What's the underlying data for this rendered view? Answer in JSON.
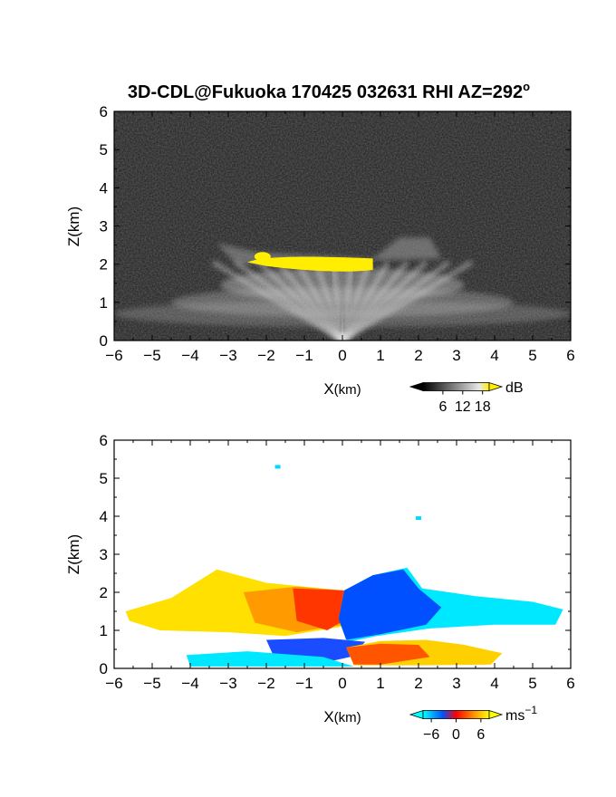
{
  "title": "3D-CDL@Fukuoka 170425 032631 RHI AZ=292",
  "title_degree": "o",
  "chart_data": [
    {
      "type": "heatmap",
      "panel": "top",
      "quantity": "signal intensity",
      "xlabel_main": "X",
      "xlabel_unit": "(km)",
      "ylabel": "Z(km)",
      "xlim": [
        -6,
        6
      ],
      "ylim": [
        0,
        6
      ],
      "xticks": [
        -6,
        -5,
        -4,
        -3,
        -2,
        -1,
        0,
        1,
        2,
        3,
        4,
        5,
        6
      ],
      "yticks": [
        0,
        1,
        2,
        3,
        4,
        5,
        6
      ],
      "colorbar": {
        "label": "dB",
        "ticks": [
          6,
          12,
          18
        ],
        "range": [
          0,
          20
        ],
        "colors": [
          "#000000",
          "#ffffff",
          "#ffee00"
        ]
      },
      "features": {
        "saturated_layer_z_km": [
          1.8,
          2.2
        ],
        "saturated_layer_x_km": [
          -2.5,
          0.8
        ],
        "beam_fan_top_z_km": 2.7
      }
    },
    {
      "type": "heatmap",
      "panel": "bottom",
      "quantity": "radial velocity",
      "xlabel_main": "X",
      "xlabel_unit": "(km)",
      "ylabel": "Z(km)",
      "xlim": [
        -6,
        6
      ],
      "ylim": [
        0,
        6
      ],
      "xticks": [
        -6,
        -5,
        -4,
        -3,
        -2,
        -1,
        0,
        1,
        2,
        3,
        4,
        5,
        6
      ],
      "yticks": [
        0,
        1,
        2,
        3,
        4,
        5,
        6
      ],
      "colorbar": {
        "label_main": "ms",
        "label_exp": "−1",
        "ticks": [
          "−6",
          "0",
          "6"
        ],
        "range": [
          -8,
          8
        ],
        "colors": [
          "#00ffff",
          "#0050ff",
          "#ff0000",
          "#ffff00"
        ]
      },
      "features": {
        "left_upper_flow_sign": "positive",
        "right_upper_flow_sign": "negative",
        "left_lower_flow_sign": "negative",
        "right_lower_flow_sign": "positive",
        "isolated_echo_points_km": [
          [
            -1.7,
            5.3
          ],
          [
            2.0,
            3.95
          ]
        ]
      }
    }
  ]
}
